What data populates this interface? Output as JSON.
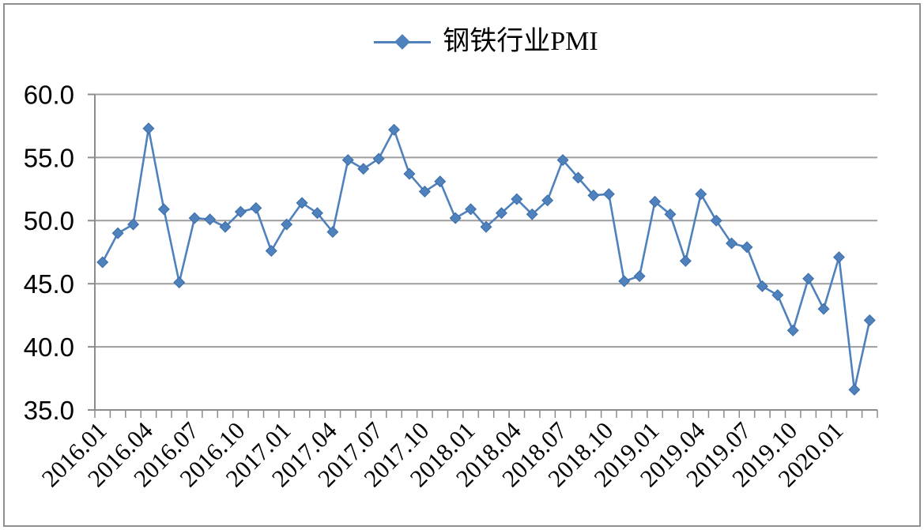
{
  "legend": {
    "label": "钢铁行业PMI",
    "position": "top"
  },
  "colors": {
    "series": "#4f81bd",
    "marker_edge": "#3a6da8",
    "gridline": "#9d9d9d",
    "axis": "#8c8c8c",
    "text": "#000000",
    "frame_border": "#8f8f8f",
    "background": "#ffffff"
  },
  "chart_data": {
    "type": "line",
    "title": "",
    "legend_position": "top",
    "grid": true,
    "marker": "diamond",
    "categories": [
      "2016.01",
      "2016.02",
      "2016.03",
      "2016.04",
      "2016.05",
      "2016.06",
      "2016.07",
      "2016.08",
      "2016.09",
      "2016.10",
      "2016.11",
      "2016.12",
      "2017.01",
      "2017.02",
      "2017.03",
      "2017.04",
      "2017.05",
      "2017.06",
      "2017.07",
      "2017.08",
      "2017.09",
      "2017.10",
      "2017.11",
      "2017.12",
      "2018.01",
      "2018.02",
      "2018.03",
      "2018.04",
      "2018.05",
      "2018.06",
      "2018.07",
      "2018.08",
      "2018.09",
      "2018.10",
      "2018.11",
      "2018.12",
      "2019.01",
      "2019.02",
      "2019.03",
      "2019.04",
      "2019.05",
      "2019.06",
      "2019.07",
      "2019.08",
      "2019.09",
      "2019.10",
      "2019.11",
      "2019.12",
      "2020.01",
      "2020.02",
      "2020.03"
    ],
    "series": [
      {
        "name": "钢铁行业PMI",
        "values": [
          46.7,
          49.0,
          49.7,
          57.3,
          50.9,
          45.1,
          50.2,
          50.1,
          49.5,
          50.7,
          51.0,
          47.6,
          49.7,
          51.4,
          50.6,
          49.1,
          54.8,
          54.1,
          54.9,
          57.2,
          53.7,
          52.3,
          53.1,
          50.2,
          50.9,
          49.5,
          50.6,
          51.7,
          50.5,
          51.6,
          54.8,
          53.4,
          52.0,
          52.1,
          45.2,
          45.6,
          51.5,
          50.5,
          46.8,
          52.1,
          50.0,
          48.2,
          47.9,
          44.8,
          44.1,
          41.3,
          45.4,
          43.0,
          47.1,
          36.6,
          42.1
        ]
      }
    ],
    "xlabel": "",
    "ylabel": "",
    "x_label_interval": 3,
    "x_tick_labels_shown": [
      "2016.01",
      "2016.04",
      "2016.07",
      "2016.10",
      "2017.01",
      "2017.04",
      "2017.07",
      "2017.10",
      "2018.01",
      "2018.04",
      "2018.07",
      "2018.10",
      "2019.01",
      "2019.04",
      "2019.07",
      "2019.10",
      "2020.01"
    ],
    "x_label_rotation_deg": -45,
    "ylim": [
      35.0,
      60.0
    ],
    "y_ticks": [
      35,
      40,
      45,
      50,
      55,
      60
    ],
    "y_tick_labels": [
      "35.0",
      "40.0",
      "45.0",
      "50.0",
      "55.0",
      "60.0"
    ]
  }
}
